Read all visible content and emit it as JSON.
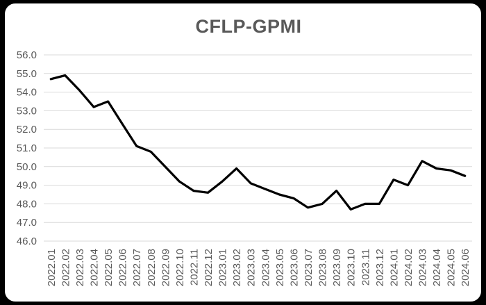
{
  "window": {
    "background_color": "#000000",
    "card_color": "#ffffff"
  },
  "chart_data": {
    "type": "line",
    "title": "CFLP-GPMI",
    "categories": [
      "2022.01",
      "2022.02",
      "2022.03",
      "2022.04",
      "2022.05",
      "2022.06",
      "2022.07",
      "2022.08",
      "2022.09",
      "2022.10",
      "2022.11",
      "2022.12",
      "2023.01",
      "2023.02",
      "2023.03",
      "2023.04",
      "2023.05",
      "2023.06",
      "2023.07",
      "2023.08",
      "2023.09",
      "2023.10",
      "2023.11",
      "2023.12",
      "2024.01",
      "2024.02",
      "2024.03",
      "2024.04",
      "2024.05",
      "2024.06"
    ],
    "series": [
      {
        "name": "CFLP-GPMI",
        "color": "#000000",
        "values": [
          54.7,
          54.9,
          54.1,
          53.2,
          53.5,
          52.3,
          51.1,
          50.8,
          50.0,
          49.2,
          48.7,
          48.6,
          49.2,
          49.9,
          49.1,
          48.8,
          48.5,
          48.3,
          47.8,
          48.0,
          48.7,
          47.7,
          48.0,
          48.0,
          49.3,
          49.0,
          50.3,
          49.9,
          49.8,
          49.5
        ]
      }
    ],
    "xlabel": "",
    "ylabel": "",
    "ylim": [
      46.0,
      56.0
    ],
    "ytick_step": 1.0,
    "yticks": [
      "56.0",
      "55.0",
      "54.0",
      "53.0",
      "52.0",
      "51.0",
      "50.0",
      "49.0",
      "48.0",
      "47.0",
      "46.0"
    ],
    "x_tick_rotation_degrees": 90,
    "grid": "horizontal",
    "legend": "none",
    "styles": {
      "gridline_color": "#d9d9d9",
      "axis_text_color": "#595959",
      "title_color": "#595959",
      "line_width": 3.25
    }
  }
}
